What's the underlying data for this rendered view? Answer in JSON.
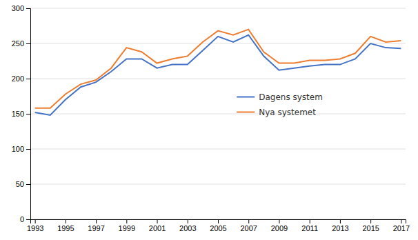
{
  "chart_data": {
    "type": "line",
    "x": [
      1993,
      1994,
      1995,
      1996,
      1997,
      1998,
      1999,
      2000,
      2001,
      2002,
      2003,
      2004,
      2005,
      2006,
      2007,
      2008,
      2009,
      2010,
      2011,
      2012,
      2013,
      2014,
      2015,
      2016,
      2017
    ],
    "series": [
      {
        "name": "Dagens system",
        "color": "#4472C4",
        "values": [
          152,
          148,
          170,
          188,
          195,
          210,
          228,
          228,
          215,
          220,
          220,
          240,
          260,
          252,
          262,
          232,
          212,
          215,
          218,
          220,
          220,
          228,
          250,
          244,
          243
        ]
      },
      {
        "name": "Nya systemet",
        "color": "#ED7D31",
        "values": [
          158,
          158,
          178,
          192,
          198,
          215,
          244,
          238,
          222,
          228,
          232,
          252,
          268,
          262,
          270,
          238,
          222,
          222,
          226,
          226,
          228,
          236,
          260,
          252,
          254
        ]
      }
    ],
    "xlim": [
      1992.7,
      2017.3
    ],
    "ylim": [
      0,
      300
    ],
    "xticks": [
      1993,
      1995,
      1997,
      1999,
      2001,
      2003,
      2005,
      2007,
      2009,
      2011,
      2013,
      2015,
      2017
    ],
    "yticks": [
      0,
      50,
      100,
      150,
      200,
      250,
      300
    ],
    "grid": true,
    "legend": "right"
  }
}
